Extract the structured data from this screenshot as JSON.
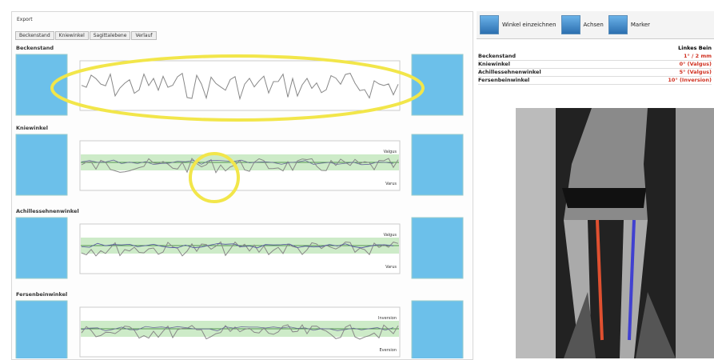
{
  "window": {
    "title": "Export",
    "tabs": [
      "Beckenstand",
      "Kniewinkel",
      "Sagittalebene",
      "Verlauf"
    ]
  },
  "sections": [
    {
      "label": "Beckenstand"
    },
    {
      "label": "Kniewinkel",
      "top_tag": "Valgus",
      "bottom_tag": "Varus"
    },
    {
      "label": "Achillessehnenwinkel",
      "top_tag": "Valgus",
      "bottom_tag": "Varus"
    },
    {
      "label": "Fersenbeinwinkel",
      "top_tag": "Inversion",
      "bottom_tag": "Eversion"
    }
  ],
  "toolbar": [
    "Winkel einzeichnen",
    "Achsen",
    "Marker"
  ],
  "results": {
    "header": "Linkes Bein",
    "rows": [
      [
        "Beckenstand",
        "1° / 2 mm"
      ],
      [
        "Kniewinkel",
        "0° (Valgus)"
      ],
      [
        "Achillessehnenwinkel",
        "5° (Valgus)"
      ],
      [
        "Fersenbeinwinkel",
        "10° (Inversion)"
      ]
    ]
  }
}
